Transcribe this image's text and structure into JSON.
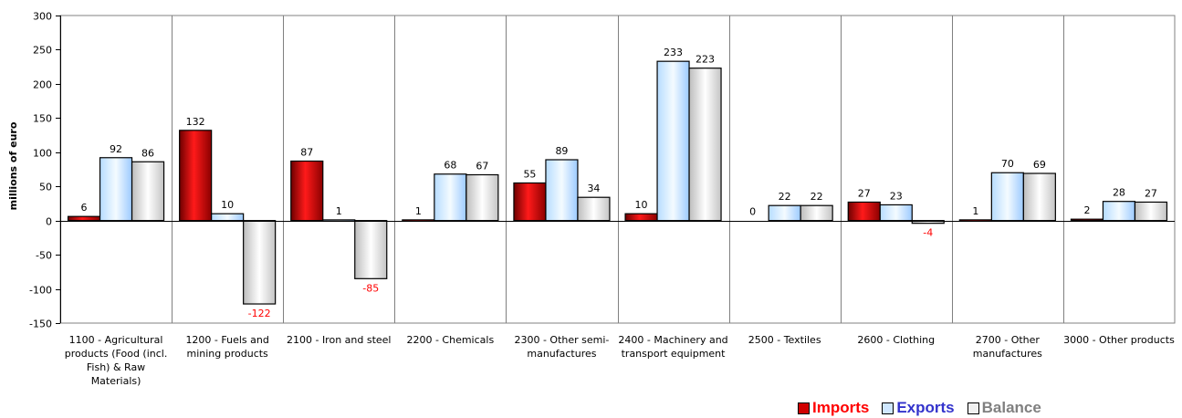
{
  "chart_data": {
    "type": "bar",
    "title": "",
    "xlabel": "",
    "ylabel": "millions of euro",
    "ylim": [
      -150,
      300
    ],
    "yticks": [
      -150,
      -100,
      -50,
      0,
      50,
      100,
      150,
      200,
      250,
      300
    ],
    "grid": "vertical category separators",
    "legend_position": "bottom-right",
    "categories": [
      [
        "1100 - Agricultural",
        "products (Food (incl.",
        "Fish) & Raw",
        "Materials)"
      ],
      [
        "1200 - Fuels and",
        "mining products"
      ],
      [
        "2100 - Iron and steel"
      ],
      [
        "2200 - Chemicals"
      ],
      [
        "2300 - Other semi-",
        "manufactures"
      ],
      [
        "2400 - Machinery and",
        "transport equipment"
      ],
      [
        "2500 - Textiles"
      ],
      [
        "2600 - Clothing"
      ],
      [
        "2700 - Other",
        "manufactures"
      ],
      [
        "3000 - Other products"
      ]
    ],
    "series": [
      {
        "name": "Imports",
        "values": [
          6,
          132,
          87,
          1,
          55,
          10,
          0,
          27,
          1,
          2
        ],
        "color": "#c00000",
        "label_color": "#ff0000"
      },
      {
        "name": "Exports",
        "values": [
          92,
          10,
          1,
          68,
          89,
          233,
          22,
          23,
          70,
          28
        ],
        "color": "#99ccff",
        "label_color": "#3333cc"
      },
      {
        "name": "Balance",
        "values": [
          86,
          -122,
          -85,
          67,
          34,
          223,
          22,
          -4,
          69,
          27
        ],
        "color": "#d9d9d9",
        "label_color": "#808080"
      }
    ],
    "data_labels": {
      "positive_color": "#000000",
      "negative_color": "#ff0000"
    }
  }
}
